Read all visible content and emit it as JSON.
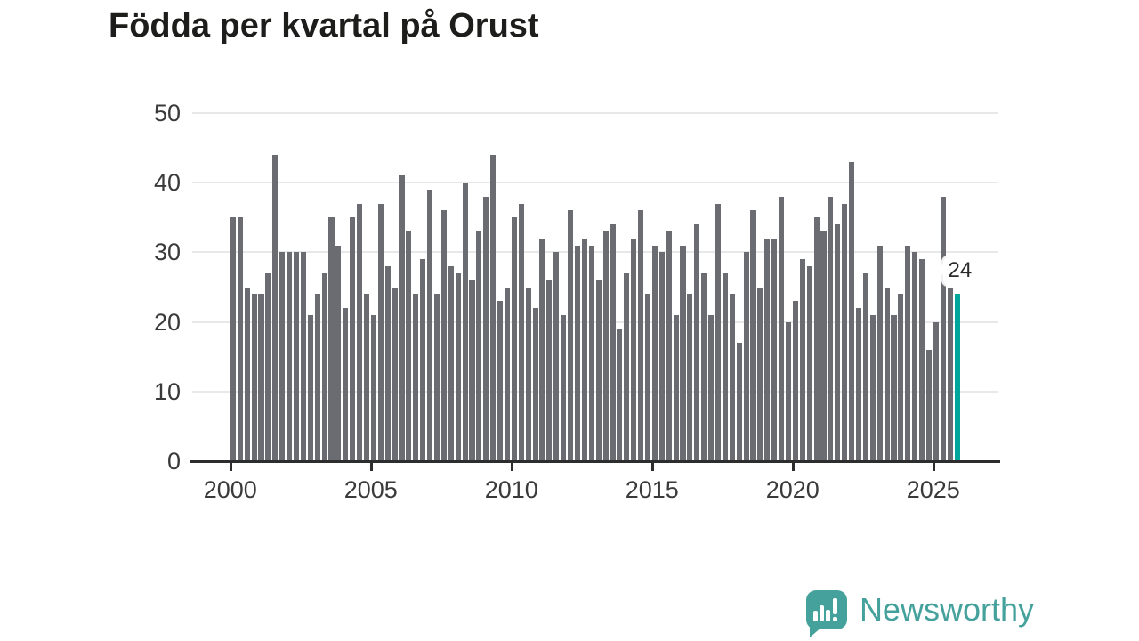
{
  "title": "Födda per kvartal på Orust",
  "chart_data": {
    "type": "bar",
    "title": "Födda per kvartal på Orust",
    "x_start": "2000-Q1",
    "x_end": "2025-Q4",
    "x_tick_labels": [
      "2000",
      "2005",
      "2010",
      "2015",
      "2020",
      "2025"
    ],
    "y_ticks": [
      0,
      10,
      20,
      30,
      40,
      50
    ],
    "ylim": [
      0,
      50
    ],
    "grid": true,
    "legend_position": "none",
    "bar_color": "#6b6b72",
    "series": [
      {
        "name": "Födda per kvartal",
        "values": [
          35,
          35,
          25,
          24,
          24,
          27,
          44,
          30,
          30,
          30,
          30,
          21,
          24,
          27,
          35,
          31,
          22,
          35,
          37,
          24,
          21,
          37,
          28,
          25,
          41,
          33,
          24,
          29,
          39,
          24,
          36,
          28,
          27,
          40,
          26,
          33,
          38,
          44,
          23,
          25,
          35,
          37,
          25,
          22,
          32,
          26,
          30,
          21,
          36,
          31,
          32,
          31,
          26,
          33,
          34,
          19,
          27,
          32,
          36,
          24,
          31,
          30,
          33,
          21,
          31,
          24,
          34,
          27,
          21,
          37,
          27,
          24,
          17,
          30,
          36,
          25,
          32,
          32,
          38,
          20,
          23,
          29,
          28,
          35,
          33,
          38,
          34,
          37,
          43,
          22,
          27,
          21,
          31,
          25,
          21,
          24,
          31,
          30,
          29,
          16,
          20,
          38,
          25,
          24
        ]
      }
    ],
    "highlight": {
      "index": 103,
      "value": 24,
      "label": "24",
      "color": "#00a69b"
    }
  },
  "annotation": {
    "label": "24"
  },
  "footer": {
    "brand": "Newsworthy",
    "logo_icon": "bar-chart-speech-bubble-icon"
  },
  "colors": {
    "bar": "#6b6b72",
    "highlight": "#00a69b",
    "brand_teal": "#45a19b",
    "grid": "#e8e8e8",
    "axis": "#2d2d2d",
    "title_text": "#1d1d1b",
    "tick_text": "#3a3a3a"
  }
}
